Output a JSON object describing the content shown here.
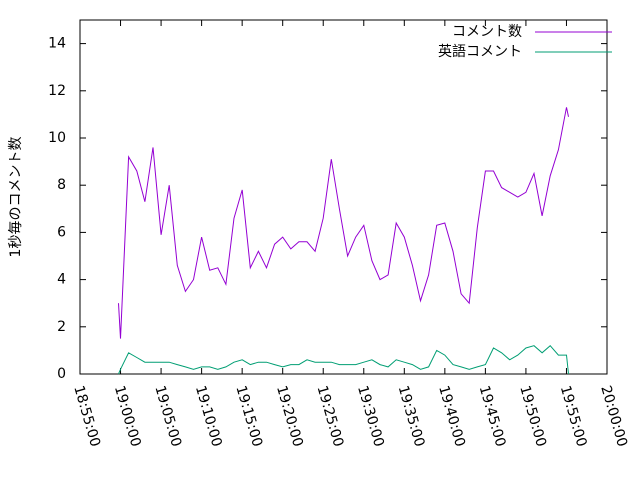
{
  "chart_data": {
    "type": "line",
    "ylabel": "1秒毎のコメント数",
    "x": [
      "18:59:45",
      "19:00:00",
      "19:01:00",
      "19:02:00",
      "19:03:00",
      "19:04:00",
      "19:05:00",
      "19:06:00",
      "19:07:00",
      "19:08:00",
      "19:09:00",
      "19:10:00",
      "19:11:00",
      "19:12:00",
      "19:13:00",
      "19:14:00",
      "19:15:00",
      "19:16:00",
      "19:17:00",
      "19:18:00",
      "19:19:00",
      "19:20:00",
      "19:21:00",
      "19:22:00",
      "19:23:00",
      "19:24:00",
      "19:25:00",
      "19:26:00",
      "19:27:00",
      "19:28:00",
      "19:29:00",
      "19:30:00",
      "19:31:00",
      "19:32:00",
      "19:33:00",
      "19:34:00",
      "19:35:00",
      "19:36:00",
      "19:37:00",
      "19:38:00",
      "19:39:00",
      "19:40:00",
      "19:41:00",
      "19:42:00",
      "19:43:00",
      "19:44:00",
      "19:45:00",
      "19:46:00",
      "19:47:00",
      "19:48:00",
      "19:49:00",
      "19:50:00",
      "19:51:00",
      "19:52:00",
      "19:53:00",
      "19:54:00",
      "19:55:00",
      "19:55:15"
    ],
    "series": [
      {
        "name": "コメント数",
        "color": "#9400d3",
        "values": [
          3.0,
          1.5,
          9.2,
          8.6,
          7.3,
          9.6,
          5.9,
          8.0,
          4.6,
          3.5,
          4.0,
          5.8,
          4.4,
          4.5,
          3.8,
          6.6,
          7.8,
          4.5,
          5.2,
          4.5,
          5.5,
          5.8,
          5.3,
          5.6,
          5.6,
          5.2,
          6.6,
          9.1,
          7.0,
          5.0,
          5.8,
          6.3,
          4.8,
          4.0,
          4.2,
          6.4,
          5.8,
          4.6,
          3.1,
          4.2,
          6.3,
          6.4,
          5.2,
          3.4,
          3.0,
          6.2,
          8.6,
          8.6,
          7.9,
          7.7,
          7.5,
          7.7,
          8.5,
          6.7,
          8.4,
          9.5,
          11.3,
          10.9
        ]
      },
      {
        "name": "英語コメント",
        "color": "#009e73",
        "values": [
          0.0,
          0.2,
          0.9,
          0.7,
          0.5,
          0.5,
          0.5,
          0.5,
          0.4,
          0.3,
          0.2,
          0.3,
          0.3,
          0.2,
          0.3,
          0.5,
          0.6,
          0.4,
          0.5,
          0.5,
          0.4,
          0.3,
          0.4,
          0.4,
          0.6,
          0.5,
          0.5,
          0.5,
          0.4,
          0.4,
          0.4,
          0.5,
          0.6,
          0.4,
          0.3,
          0.6,
          0.5,
          0.4,
          0.2,
          0.3,
          1.0,
          0.8,
          0.4,
          0.3,
          0.2,
          0.3,
          0.4,
          1.1,
          0.9,
          0.6,
          0.8,
          1.1,
          1.2,
          0.9,
          1.2,
          0.8,
          0.8,
          0.0
        ]
      }
    ],
    "xlim": [
      "18:55:00",
      "20:00:00"
    ],
    "xticks": [
      "18:55:00",
      "19:00:00",
      "19:05:00",
      "19:10:00",
      "19:15:00",
      "19:20:00",
      "19:25:00",
      "19:30:00",
      "19:35:00",
      "19:40:00",
      "19:45:00",
      "19:50:00",
      "19:55:00",
      "20:00:00"
    ],
    "ylim": [
      0,
      15
    ],
    "yticks": [
      0,
      2,
      4,
      6,
      8,
      10,
      12,
      14
    ],
    "legend": "top-right",
    "grid": false
  }
}
